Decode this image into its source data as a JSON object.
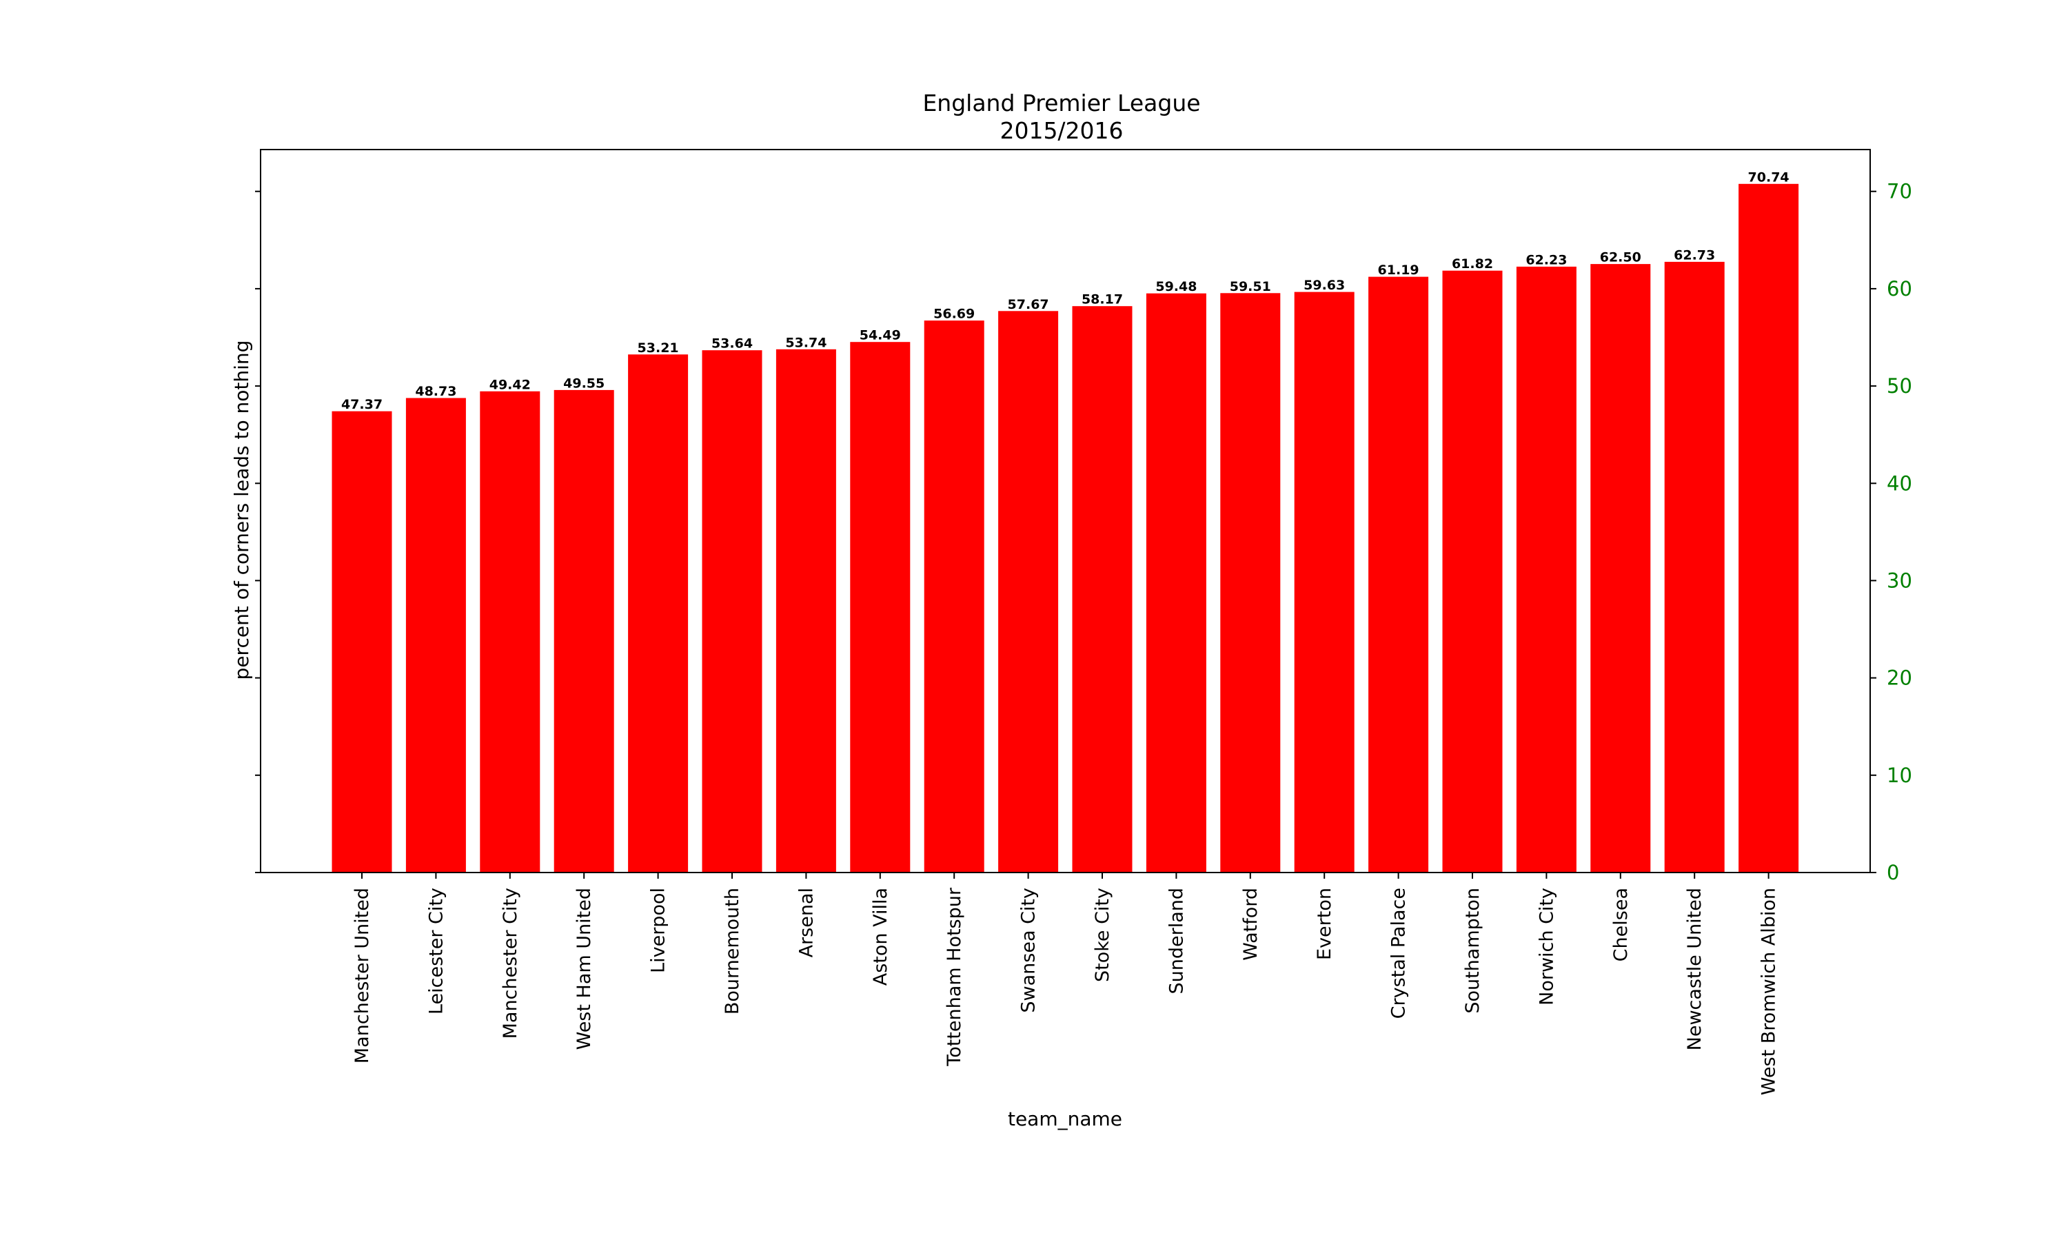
{
  "chart_data": {
    "type": "bar",
    "title": "England Premier League",
    "subtitle": "2015/2016",
    "xlabel": "team_name",
    "ylabel": "percent of corners leads to nothing",
    "ylim": [
      0,
      74.3
    ],
    "yticks": [
      "0",
      "10",
      "20",
      "30",
      "40",
      "50",
      "60",
      "70"
    ],
    "ytick_axis_side": "right",
    "grid": false,
    "legend": "none",
    "categories": [
      "Manchester United",
      "Leicester City",
      "Manchester City",
      "West Ham United",
      "Liverpool",
      "Bournemouth",
      "Arsenal",
      "Aston Villa",
      "Tottenham Hotspur",
      "Swansea City",
      "Stoke City",
      "Sunderland",
      "Watford",
      "Everton",
      "Crystal Palace",
      "Southampton",
      "Norwich City",
      "Chelsea",
      "Newcastle United",
      "West Bromwich Albion"
    ],
    "values": [
      47.37,
      48.73,
      49.42,
      49.55,
      53.21,
      53.64,
      53.74,
      54.49,
      56.69,
      57.67,
      58.17,
      59.48,
      59.51,
      59.63,
      61.19,
      61.82,
      62.23,
      62.5,
      62.73,
      70.74
    ],
    "value_labels": [
      "47.37",
      "48.73",
      "49.42",
      "49.55",
      "53.21",
      "53.64",
      "53.74",
      "54.49",
      "56.69",
      "57.67",
      "58.17",
      "59.48",
      "59.51",
      "59.63",
      "61.19",
      "61.82",
      "62.23",
      "62.50",
      "62.73",
      "70.74"
    ],
    "colors": {
      "bar": "#ff0000",
      "right_tick": "#008000",
      "axes": "#000000"
    }
  }
}
